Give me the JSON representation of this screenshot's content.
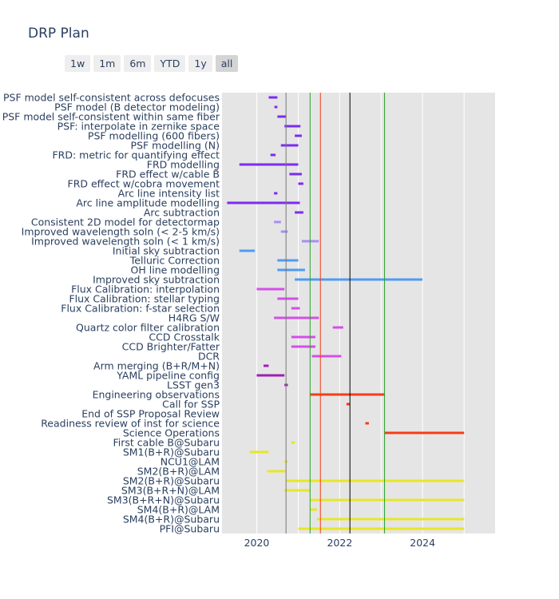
{
  "title": "DRP Plan",
  "range_buttons": [
    "1w",
    "1m",
    "6m",
    "YTD",
    "1y",
    "all"
  ],
  "active_range": "all",
  "chart_data": {
    "type": "timeline",
    "title": "DRP Plan",
    "xrange": [
      "2019-03-01",
      "2025-10-01"
    ],
    "xticks": [
      2020,
      2022,
      2024
    ],
    "grid": true,
    "tasks": [
      {
        "name": "PSF model self-consistent across defocuses",
        "start": "2020-04-15",
        "end": "2020-07-01",
        "color": "#7b2cf0"
      },
      {
        "name": "PSF model (B detector modeling)",
        "start": "2020-06-05",
        "end": "2020-07-01",
        "color": "#7b2cf0"
      },
      {
        "name": "PSF model self-consistent within same fiber",
        "start": "2020-07-01",
        "end": "2020-09-15",
        "color": "#7b2cf0"
      },
      {
        "name": "PSF: interpolate in zernike space",
        "start": "2020-09-01",
        "end": "2021-01-20",
        "color": "#7b2cf0"
      },
      {
        "name": "PSF modelling (600 fibers)",
        "start": "2020-12-01",
        "end": "2021-02-01",
        "color": "#7b2cf0"
      },
      {
        "name": "PSF modelling (N)",
        "start": "2020-08-01",
        "end": "2021-01-01",
        "color": "#7b2cf0"
      },
      {
        "name": "FRD: metric for quantifying effect",
        "start": "2020-05-01",
        "end": "2020-06-15",
        "color": "#7b2cf0"
      },
      {
        "name": "FRD modelling",
        "start": "2019-08-01",
        "end": "2021-01-01",
        "color": "#7b2cf0"
      },
      {
        "name": "FRD effect w/cable B",
        "start": "2020-10-15",
        "end": "2021-02-01",
        "color": "#7b2cf0"
      },
      {
        "name": "FRD effect w/cobra movement",
        "start": "2021-01-01",
        "end": "2021-02-15",
        "color": "#7b2cf0"
      },
      {
        "name": "Arc line intensity list",
        "start": "2020-06-01",
        "end": "2020-07-01",
        "color": "#7b2cf0"
      },
      {
        "name": "Arc line amplitude modelling",
        "start": "2019-04-15",
        "end": "2021-01-15",
        "color": "#7b2cf0"
      },
      {
        "name": "Arc subtraction",
        "start": "2020-12-01",
        "end": "2021-02-15",
        "color": "#7b2cf0"
      },
      {
        "name": "Consistent 2D model for detectormap",
        "start": "2020-06-01",
        "end": "2020-08-01",
        "color": "#a98ef5"
      },
      {
        "name": "Improved wavelength soln (< 2-5 km/s)",
        "start": "2020-08-01",
        "end": "2020-10-01",
        "color": "#a98ef5"
      },
      {
        "name": "Improved wavelength soln (< 1 km/s)",
        "start": "2021-02-01",
        "end": "2021-07-01",
        "color": "#a98ef5"
      },
      {
        "name": "Initial sky subtraction",
        "start": "2019-08-01",
        "end": "2019-12-15",
        "color": "#4f9bf2"
      },
      {
        "name": "Telluric Correction",
        "start": "2020-07-01",
        "end": "2021-01-01",
        "color": "#4f9bf2"
      },
      {
        "name": "OH line modelling",
        "start": "2020-07-01",
        "end": "2021-03-01",
        "color": "#4f9bf2"
      },
      {
        "name": "Improved sky subtraction",
        "start": "2020-12-01",
        "end": "2023-12-31",
        "color": "#4f9bf2"
      },
      {
        "name": "Flux Calibration: interpolation",
        "start": "2020-01-01",
        "end": "2020-09-01",
        "color": "#d44fe8"
      },
      {
        "name": "Flux Calibration: stellar typing",
        "start": "2020-07-01",
        "end": "2021-01-01",
        "color": "#d44fe8"
      },
      {
        "name": "Flux Calibration: f-star selection",
        "start": "2020-11-01",
        "end": "2021-01-15",
        "color": "#d44fe8"
      },
      {
        "name": "H4RG S/W",
        "start": "2020-06-01",
        "end": "2021-07-01",
        "color": "#d44fe8"
      },
      {
        "name": "Quartz color filter calibration",
        "start": "2021-11-01",
        "end": "2022-02-01",
        "color": "#d44fe8"
      },
      {
        "name": "CCD Crosstalk",
        "start": "2020-11-01",
        "end": "2021-06-01",
        "color": "#d44fe8"
      },
      {
        "name": "CCD Brighter/Fatter",
        "start": "2020-11-01",
        "end": "2021-06-01",
        "color": "#d44fe8"
      },
      {
        "name": "DCR",
        "start": "2021-05-01",
        "end": "2022-01-15",
        "color": "#d44fe8"
      },
      {
        "name": "Arm merging (B+R/M+N)",
        "start": "2020-03-01",
        "end": "2020-04-15",
        "color": "#a11cb8"
      },
      {
        "name": "YAML pipeline config",
        "start": "2020-01-01",
        "end": "2020-09-01",
        "color": "#a11cb8"
      },
      {
        "name": "LSST gen3",
        "start": "2020-09-01",
        "end": "2020-10-01",
        "color": "#a11cb8"
      },
      {
        "name": "Engineering observations",
        "start": "2021-04-15",
        "end": "2023-01-31",
        "color": "#f53d16"
      },
      {
        "name": "Call for SSP",
        "start": "2022-03-01",
        "end": "2022-04-01",
        "color": "#f53d16"
      },
      {
        "name": "End of SSP Proposal Review",
        "start": "",
        "end": "",
        "color": "#f53d16"
      },
      {
        "name": "Readiness review of inst for science",
        "start": "2022-08-15",
        "end": "2022-09-15",
        "color": "#f53d16"
      },
      {
        "name": "Science Operations",
        "start": "2023-01-31",
        "end": "2025-01-01",
        "color": "#f53d16"
      },
      {
        "name": "First cable B@Subaru",
        "start": "2020-11-01",
        "end": "2020-12-01",
        "color": "#e8e626"
      },
      {
        "name": "SM1(B+R)@Subaru",
        "start": "2019-11-01",
        "end": "2020-04-15",
        "color": "#e8e626"
      },
      {
        "name": "NCU1@LAM",
        "start": "2020-09-01",
        "end": "2020-10-01",
        "color": "#e8e626"
      },
      {
        "name": "SM2(B+R)@LAM",
        "start": "2020-04-01",
        "end": "2020-09-15",
        "color": "#e8e626"
      },
      {
        "name": "SM2(B+R)@Subaru",
        "start": "2020-09-15",
        "end": "2025-01-01",
        "color": "#e8e626"
      },
      {
        "name": "SM3(B+R+N)@LAM",
        "start": "2020-09-01",
        "end": "2021-04-15",
        "color": "#e8e626"
      },
      {
        "name": "SM3(B+R+N)@Subaru",
        "start": "2021-04-15",
        "end": "2025-01-01",
        "color": "#e8e626"
      },
      {
        "name": "SM4(B+R)@LAM",
        "start": "2021-04-15",
        "end": "2021-06-15",
        "color": "#e8e626"
      },
      {
        "name": "SM4(B+R)@Subaru",
        "start": "2021-06-15",
        "end": "2025-01-01",
        "color": "#e8e626"
      },
      {
        "name": "PFI@Subaru",
        "start": "2021-01-01",
        "end": "2025-01-01",
        "color": "#e8e626"
      }
    ],
    "vlines": [
      {
        "date": "2020-09-15",
        "color": "#777777"
      },
      {
        "date": "2021-04-15",
        "color": "#2ca02c"
      },
      {
        "date": "2021-07-15",
        "color": "#f53d16"
      },
      {
        "date": "2022-04-01",
        "color": "#000000"
      },
      {
        "date": "2023-01-31",
        "color": "#2ca02c"
      }
    ]
  }
}
